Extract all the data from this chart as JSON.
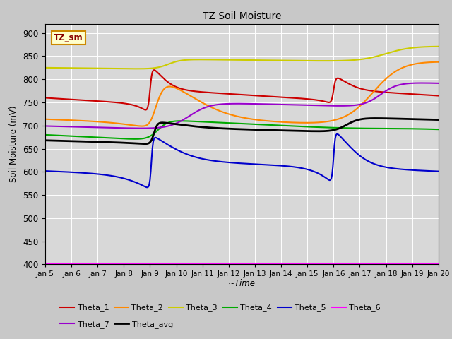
{
  "title": "TZ Soil Moisture",
  "xlabel": "~Time",
  "ylabel": "Soil Moisture (mV)",
  "ylim": [
    400,
    920
  ],
  "yticks": [
    400,
    450,
    500,
    550,
    600,
    650,
    700,
    750,
    800,
    850,
    900
  ],
  "background_color": "#d8d8d8",
  "fig_background": "#c8c8c8",
  "legend_label": "TZ_sm",
  "legend_label_color": "#880000",
  "legend_box_face": "#ffffcc",
  "legend_box_edge": "#cc8800",
  "series": {
    "Theta_1": {
      "color": "#cc0000",
      "linewidth": 1.5
    },
    "Theta_2": {
      "color": "#ff8800",
      "linewidth": 1.5
    },
    "Theta_3": {
      "color": "#cccc00",
      "linewidth": 1.5
    },
    "Theta_4": {
      "color": "#00aa00",
      "linewidth": 1.5
    },
    "Theta_5": {
      "color": "#0000cc",
      "linewidth": 1.5
    },
    "Theta_6": {
      "color": "#ff00ff",
      "linewidth": 1.5
    },
    "Theta_7": {
      "color": "#9900cc",
      "linewidth": 1.5
    },
    "Theta_avg": {
      "color": "#000000",
      "linewidth": 2.0
    }
  }
}
